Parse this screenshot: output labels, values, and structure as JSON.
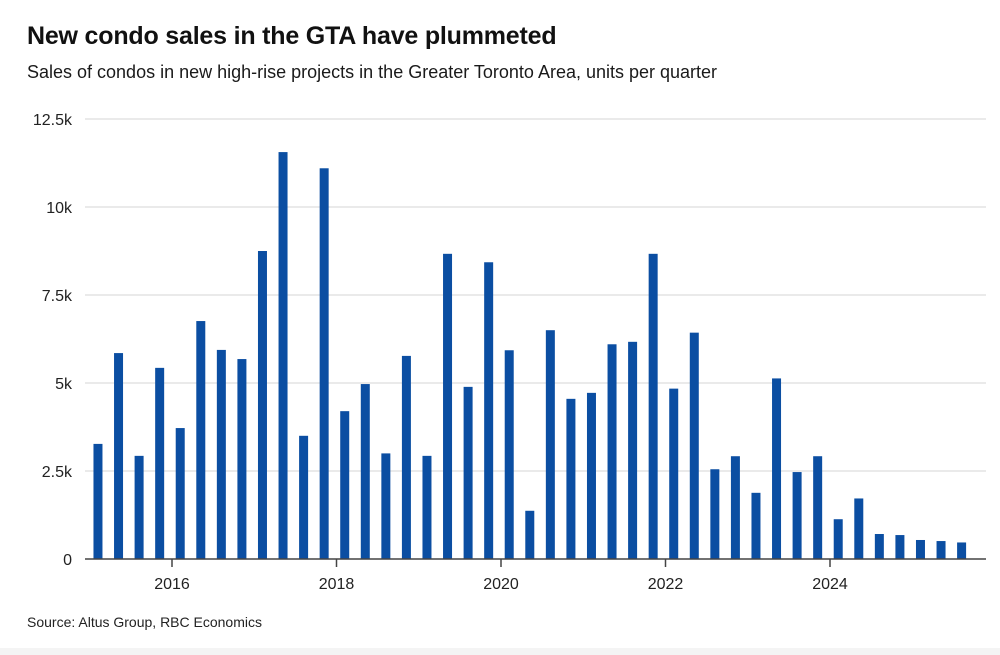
{
  "header": {
    "title": "New condo sales in the GTA have plummeted",
    "subtitle": "Sales of condos in new high-rise projects in the Greater Toronto Area, units per quarter"
  },
  "footer": {
    "source": "Source: Altus Group, RBC Economics"
  },
  "colors": {
    "bar": "#0b4ea2",
    "grid": "#e3e3e3",
    "axis": "#444444"
  },
  "chart_data": {
    "type": "bar",
    "title": "New condo sales in the GTA have plummeted",
    "subtitle": "Sales of condos in new high-rise projects in the Greater Toronto Area, units per quarter",
    "xlabel": "",
    "ylabel": "",
    "ylim": [
      0,
      12500
    ],
    "yticks": [
      0,
      2500,
      5000,
      7500,
      10000,
      12500
    ],
    "ytick_labels": [
      "0",
      "2.5k",
      "5k",
      "7.5k",
      "10k",
      "12.5k"
    ],
    "xticks": [
      2016,
      2018,
      2020,
      2022,
      2024
    ],
    "xtick_labels": [
      "2016",
      "2018",
      "2020",
      "2022",
      "2024"
    ],
    "grid": true,
    "legend": "none",
    "categories": [
      "2015 Q1",
      "2015 Q2",
      "2015 Q3",
      "2015 Q4",
      "2016 Q1",
      "2016 Q2",
      "2016 Q3",
      "2016 Q4",
      "2017 Q1",
      "2017 Q2",
      "2017 Q3",
      "2017 Q4",
      "2018 Q1",
      "2018 Q2",
      "2018 Q3",
      "2018 Q4",
      "2019 Q1",
      "2019 Q2",
      "2019 Q3",
      "2019 Q4",
      "2020 Q1",
      "2020 Q2",
      "2020 Q3",
      "2020 Q4",
      "2021 Q1",
      "2021 Q2",
      "2021 Q3",
      "2021 Q4",
      "2022 Q1",
      "2022 Q2",
      "2022 Q3",
      "2022 Q4",
      "2023 Q1",
      "2023 Q2",
      "2023 Q3",
      "2023 Q4",
      "2024 Q1",
      "2024 Q2",
      "2024 Q3",
      "2024 Q4",
      "2025 Q1",
      "2025 Q2",
      "2025 Q3"
    ],
    "x": [
      2015.0,
      2015.25,
      2015.5,
      2015.75,
      2016.0,
      2016.25,
      2016.5,
      2016.75,
      2017.0,
      2017.25,
      2017.5,
      2017.75,
      2018.0,
      2018.25,
      2018.5,
      2018.75,
      2019.0,
      2019.25,
      2019.5,
      2019.75,
      2020.0,
      2020.25,
      2020.5,
      2020.75,
      2021.0,
      2021.25,
      2021.5,
      2021.75,
      2022.0,
      2022.25,
      2022.5,
      2022.75,
      2023.0,
      2023.25,
      2023.5,
      2023.75,
      2024.0,
      2024.25,
      2024.5,
      2024.75,
      2025.0,
      2025.25,
      2025.5
    ],
    "values": [
      3270,
      5850,
      2930,
      5430,
      3720,
      6760,
      5940,
      5680,
      8750,
      11560,
      3500,
      11100,
      4200,
      4970,
      3000,
      5770,
      2930,
      8670,
      4890,
      8430,
      5930,
      1370,
      6500,
      4550,
      4720,
      6100,
      6170,
      8670,
      4840,
      6430,
      2550,
      2920,
      1880,
      5130,
      2470,
      2920,
      1130,
      1720,
      710,
      680,
      540,
      510,
      470
    ]
  }
}
